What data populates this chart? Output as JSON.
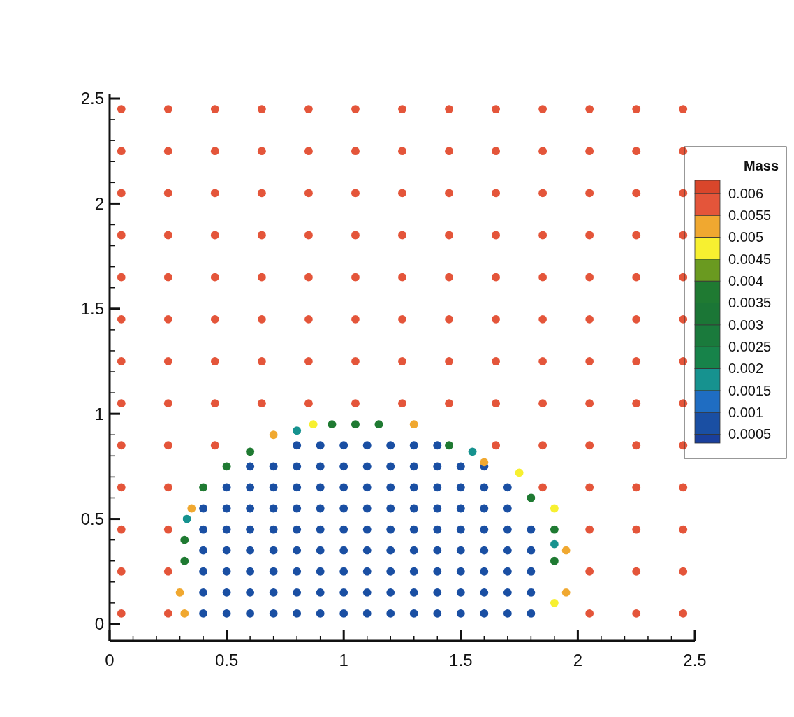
{
  "chart_data": {
    "type": "scatter",
    "clabel": "Mass",
    "marker": "circle",
    "xlim": [
      0,
      2.5
    ],
    "ylim": [
      -0.08,
      2.52
    ],
    "xticks": [
      0,
      {
        "value": 0.1,
        "label": null
      },
      {
        "value": 0.2,
        "label": null
      },
      {
        "value": 0.3,
        "label": null
      },
      {
        "value": 0.4,
        "label": null
      },
      0.5,
      {
        "value": 0.6,
        "label": null
      },
      {
        "value": 0.7,
        "label": null
      },
      {
        "value": 0.8,
        "label": null
      },
      {
        "value": 0.9,
        "label": null
      },
      1,
      {
        "value": 1.1,
        "label": null
      },
      {
        "value": 1.2,
        "label": null
      },
      {
        "value": 1.3,
        "label": null
      },
      {
        "value": 1.4,
        "label": null
      },
      1.5,
      {
        "value": 1.6,
        "label": null
      },
      {
        "value": 1.7,
        "label": null
      },
      {
        "value": 1.8,
        "label": null
      },
      {
        "value": 1.9,
        "label": null
      },
      2,
      {
        "value": 2.1,
        "label": null
      },
      {
        "value": 2.2,
        "label": null
      },
      {
        "value": 2.3,
        "label": null
      },
      {
        "value": 2.4,
        "label": null
      },
      2.5
    ],
    "yticks": [
      0,
      {
        "value": 0.1,
        "label": null
      },
      {
        "value": 0.2,
        "label": null
      },
      {
        "value": 0.3,
        "label": null
      },
      {
        "value": 0.4,
        "label": null
      },
      0.5,
      {
        "value": 0.6,
        "label": null
      },
      {
        "value": 0.7,
        "label": null
      },
      {
        "value": 0.8,
        "label": null
      },
      {
        "value": 0.9,
        "label": null
      },
      1,
      {
        "value": 1.1,
        "label": null
      },
      {
        "value": 1.2,
        "label": null
      },
      {
        "value": 1.3,
        "label": null
      },
      {
        "value": 1.4,
        "label": null
      },
      1.5,
      {
        "value": 1.6,
        "label": null
      },
      {
        "value": 1.7,
        "label": null
      },
      {
        "value": 1.8,
        "label": null
      },
      {
        "value": 1.9,
        "label": null
      },
      2,
      {
        "value": 2.1,
        "label": null
      },
      {
        "value": 2.2,
        "label": null
      },
      {
        "value": 2.3,
        "label": null
      },
      {
        "value": 2.4,
        "label": null
      },
      2.5
    ],
    "clim": [
      0.0003,
      0.0063
    ],
    "cticks": [
      0.0005,
      0.001,
      0.0015,
      0.002,
      0.0025,
      0.003,
      0.0035,
      0.004,
      0.0045,
      0.005,
      0.0055,
      0.006
    ],
    "series": [
      {
        "x": [
          0.05,
          0.25,
          2.05,
          2.25,
          2.45,
          0.05,
          0.25,
          2.05,
          2.25,
          2.45,
          0.05,
          0.25,
          2.05,
          2.25,
          2.45,
          0.05,
          0.25,
          1.85,
          2.05,
          2.25,
          2.45,
          0.05,
          0.25,
          0.45,
          1.65,
          1.85,
          2.05,
          2.25,
          2.45,
          0.05,
          0.25,
          0.45,
          0.65,
          0.85,
          1.05,
          1.25,
          1.45,
          1.65,
          1.85,
          2.05,
          2.25,
          2.45,
          0.05,
          0.25,
          0.45,
          0.65,
          0.85,
          1.05,
          1.25,
          1.45,
          1.65,
          1.85,
          2.05,
          2.25,
          2.45,
          0.05,
          0.25,
          0.45,
          0.65,
          0.85,
          1.05,
          1.25,
          1.45,
          1.65,
          1.85,
          2.05,
          2.25,
          2.45,
          0.05,
          0.25,
          0.45,
          0.65,
          0.85,
          1.05,
          1.25,
          1.45,
          1.65,
          1.85,
          2.05,
          2.25,
          2.45,
          0.05,
          0.25,
          0.45,
          0.65,
          0.85,
          1.05,
          1.25,
          1.45,
          1.65,
          1.85,
          2.05,
          2.25,
          2.45,
          0.05,
          0.25,
          0.45,
          0.65,
          0.85,
          1.05,
          1.25,
          1.45,
          1.65,
          1.85,
          2.05,
          2.25,
          2.45,
          0.05,
          0.25,
          0.45,
          0.65,
          0.85,
          1.05,
          1.25,
          1.45,
          1.65,
          1.85,
          2.05,
          2.25,
          2.45,
          0.05,
          0.25,
          0.45,
          0.65,
          0.85,
          1.05,
          1.25,
          1.45,
          1.65,
          1.85,
          2.05,
          2.25,
          2.45
        ],
        "values": [
          0.05,
          0.05,
          0.05,
          0.05,
          0.05,
          0.25,
          0.25,
          0.25,
          0.25,
          0.25,
          0.45,
          0.45,
          0.45,
          0.45,
          0.45,
          0.65,
          0.65,
          0.65,
          0.65,
          0.65,
          0.65,
          0.85,
          0.85,
          0.85,
          0.85,
          0.85,
          0.85,
          0.85,
          0.85,
          1.05,
          1.05,
          1.05,
          1.05,
          1.05,
          1.05,
          1.05,
          1.05,
          1.05,
          1.05,
          1.05,
          1.05,
          1.05,
          1.25,
          1.25,
          1.25,
          1.25,
          1.25,
          1.25,
          1.25,
          1.25,
          1.25,
          1.25,
          1.25,
          1.25,
          1.25,
          1.45,
          1.45,
          1.45,
          1.45,
          1.45,
          1.45,
          1.45,
          1.45,
          1.45,
          1.45,
          1.45,
          1.45,
          1.45,
          1.65,
          1.65,
          1.65,
          1.65,
          1.65,
          1.65,
          1.65,
          1.65,
          1.65,
          1.65,
          1.65,
          1.65,
          1.65,
          1.85,
          1.85,
          1.85,
          1.85,
          1.85,
          1.85,
          1.85,
          1.85,
          1.85,
          1.85,
          1.85,
          1.85,
          1.85,
          2.05,
          2.05,
          2.05,
          2.05,
          2.05,
          2.05,
          2.05,
          2.05,
          2.05,
          2.05,
          2.05,
          2.05,
          2.05,
          2.25,
          2.25,
          2.25,
          2.25,
          2.25,
          2.25,
          2.25,
          2.25,
          2.25,
          2.25,
          2.25,
          2.25,
          2.25,
          2.45,
          2.45,
          2.45,
          2.45,
          2.45,
          2.45,
          2.45,
          2.45,
          2.45,
          2.45,
          2.45,
          2.45,
          2.45
        ],
        "cvalues": [
          0.0059,
          0.0059,
          0.0059,
          0.0059,
          0.0059,
          0.0059,
          0.0059,
          0.0059,
          0.0059,
          0.0059,
          0.0059,
          0.0059,
          0.0059,
          0.0059,
          0.0059,
          0.0059,
          0.0059,
          0.0059,
          0.0059,
          0.0059,
          0.0059,
          0.0059,
          0.0059,
          0.0059,
          0.0059,
          0.0059,
          0.0059,
          0.0059,
          0.0059,
          0.0059,
          0.0059,
          0.0059,
          0.0059,
          0.0059,
          0.0059,
          0.0059,
          0.0059,
          0.0059,
          0.0059,
          0.0059,
          0.0059,
          0.0059,
          0.0059,
          0.0059,
          0.0059,
          0.0059,
          0.0059,
          0.0059,
          0.0059,
          0.0059,
          0.0059,
          0.0059,
          0.0059,
          0.0059,
          0.0059,
          0.0059,
          0.0059,
          0.0059,
          0.0059,
          0.0059,
          0.0059,
          0.0059,
          0.0059,
          0.0059,
          0.0059,
          0.0059,
          0.0059,
          0.0059,
          0.0059,
          0.0059,
          0.0059,
          0.0059,
          0.0059,
          0.0059,
          0.0059,
          0.0059,
          0.0059,
          0.0059,
          0.0059,
          0.0059,
          0.0059,
          0.0059,
          0.0059,
          0.0059,
          0.0059,
          0.0059,
          0.0059,
          0.0059,
          0.0059,
          0.0059,
          0.0059,
          0.0059,
          0.0059,
          0.0059,
          0.0059,
          0.0059,
          0.0059,
          0.0059,
          0.0059,
          0.0059,
          0.0059,
          0.0059,
          0.0059,
          0.0059,
          0.0059,
          0.0059,
          0.0059,
          0.0059,
          0.0059,
          0.0059,
          0.0059,
          0.0059,
          0.0059,
          0.0059,
          0.0059,
          0.0059,
          0.0059,
          0.0059,
          0.0059,
          0.0059,
          0.0059,
          0.0059,
          0.0059,
          0.0059,
          0.0059,
          0.0059,
          0.0059,
          0.0059,
          0.0059,
          0.0059,
          0.0059,
          0.0059,
          0.0059
        ]
      },
      {
        "x": [
          0.4,
          0.5,
          0.6,
          0.7,
          0.8,
          0.9,
          1.0,
          1.1,
          1.2,
          1.3,
          1.4,
          1.5,
          1.6,
          1.7,
          1.8,
          0.4,
          0.5,
          0.6,
          0.7,
          0.8,
          0.9,
          1.0,
          1.1,
          1.2,
          1.3,
          1.4,
          1.5,
          1.6,
          1.7,
          1.8,
          0.4,
          0.5,
          0.6,
          0.7,
          0.8,
          0.9,
          1.0,
          1.1,
          1.2,
          1.3,
          1.4,
          1.5,
          1.6,
          1.7,
          1.8,
          0.4,
          0.5,
          0.6,
          0.7,
          0.8,
          0.9,
          1.0,
          1.1,
          1.2,
          1.3,
          1.4,
          1.5,
          1.6,
          1.7,
          1.8,
          0.4,
          0.5,
          0.6,
          0.7,
          0.8,
          0.9,
          1.0,
          1.1,
          1.2,
          1.3,
          1.4,
          1.5,
          1.6,
          1.7,
          1.8,
          0.4,
          0.5,
          0.6,
          0.7,
          0.8,
          0.9,
          1.0,
          1.1,
          1.2,
          1.3,
          1.4,
          1.5,
          1.6,
          1.7,
          0.5,
          0.6,
          0.7,
          0.8,
          0.9,
          1.0,
          1.1,
          1.2,
          1.3,
          1.4,
          1.5,
          1.6,
          1.7,
          0.6,
          0.7,
          0.8,
          0.9,
          1.0,
          1.1,
          1.2,
          1.3,
          1.4,
          1.5,
          1.6,
          0.8,
          0.9,
          1.0,
          1.1,
          1.2,
          1.3,
          1.4
        ],
        "values": [
          0.05,
          0.05,
          0.05,
          0.05,
          0.05,
          0.05,
          0.05,
          0.05,
          0.05,
          0.05,
          0.05,
          0.05,
          0.05,
          0.05,
          0.05,
          0.15,
          0.15,
          0.15,
          0.15,
          0.15,
          0.15,
          0.15,
          0.15,
          0.15,
          0.15,
          0.15,
          0.15,
          0.15,
          0.15,
          0.15,
          0.25,
          0.25,
          0.25,
          0.25,
          0.25,
          0.25,
          0.25,
          0.25,
          0.25,
          0.25,
          0.25,
          0.25,
          0.25,
          0.25,
          0.25,
          0.35,
          0.35,
          0.35,
          0.35,
          0.35,
          0.35,
          0.35,
          0.35,
          0.35,
          0.35,
          0.35,
          0.35,
          0.35,
          0.35,
          0.35,
          0.45,
          0.45,
          0.45,
          0.45,
          0.45,
          0.45,
          0.45,
          0.45,
          0.45,
          0.45,
          0.45,
          0.45,
          0.45,
          0.45,
          0.45,
          0.55,
          0.55,
          0.55,
          0.55,
          0.55,
          0.55,
          0.55,
          0.55,
          0.55,
          0.55,
          0.55,
          0.55,
          0.55,
          0.55,
          0.65,
          0.65,
          0.65,
          0.65,
          0.65,
          0.65,
          0.65,
          0.65,
          0.65,
          0.65,
          0.65,
          0.65,
          0.65,
          0.75,
          0.75,
          0.75,
          0.75,
          0.75,
          0.75,
          0.75,
          0.75,
          0.75,
          0.75,
          0.75,
          0.85,
          0.85,
          0.85,
          0.85,
          0.85,
          0.85,
          0.85
        ],
        "cvalues": [
          0.0007,
          0.0007,
          0.0007,
          0.0007,
          0.0007,
          0.0007,
          0.0007,
          0.0007,
          0.0007,
          0.0007,
          0.0007,
          0.0007,
          0.0007,
          0.0007,
          0.0007,
          0.0007,
          0.0007,
          0.0007,
          0.0007,
          0.0007,
          0.0007,
          0.0007,
          0.0007,
          0.0007,
          0.0007,
          0.0007,
          0.0007,
          0.0007,
          0.0007,
          0.0007,
          0.0007,
          0.0007,
          0.0007,
          0.0007,
          0.0007,
          0.0007,
          0.0007,
          0.0007,
          0.0007,
          0.0007,
          0.0007,
          0.0007,
          0.0007,
          0.0007,
          0.0007,
          0.0007,
          0.0007,
          0.0007,
          0.0007,
          0.0007,
          0.0007,
          0.0007,
          0.0007,
          0.0007,
          0.0007,
          0.0007,
          0.0007,
          0.0007,
          0.0007,
          0.0007,
          0.0007,
          0.0007,
          0.0007,
          0.0007,
          0.0007,
          0.0007,
          0.0007,
          0.0007,
          0.0007,
          0.0007,
          0.0007,
          0.0007,
          0.0007,
          0.0007,
          0.0007,
          0.0007,
          0.0007,
          0.0007,
          0.0007,
          0.0007,
          0.0007,
          0.0007,
          0.0007,
          0.0007,
          0.0007,
          0.0007,
          0.0007,
          0.0007,
          0.0007,
          0.0007,
          0.0007,
          0.0007,
          0.0007,
          0.0007,
          0.0007,
          0.0007,
          0.0007,
          0.0007,
          0.0007,
          0.0007,
          0.0007,
          0.0007,
          0.0007,
          0.0007,
          0.0007,
          0.0007,
          0.0007,
          0.0007,
          0.0007,
          0.0007,
          0.0007,
          0.0007,
          0.0007,
          0.0007,
          0.0007,
          0.0007,
          0.0007,
          0.0007,
          0.0007,
          0.0007
        ]
      },
      {
        "x": [
          0.87,
          1.75,
          1.9,
          1.9
        ],
        "values": [
          0.95,
          0.72,
          0.55,
          0.1
        ],
        "cvalues": [
          0.0048,
          0.0048,
          0.0048,
          0.0048
        ]
      },
      {
        "x": [
          0.32,
          0.3,
          0.35,
          0.7,
          1.3,
          1.6,
          1.95,
          1.95
        ],
        "values": [
          0.05,
          0.15,
          0.55,
          0.9,
          0.95,
          0.77,
          0.35,
          0.15
        ],
        "cvalues": [
          0.0052,
          0.0052,
          0.0052,
          0.0052,
          0.0052,
          0.0052,
          0.0052,
          0.0052
        ]
      },
      {
        "x": [
          0.32,
          0.32,
          0.4,
          0.5,
          0.6,
          0.95,
          1.05,
          1.15,
          1.45,
          1.8,
          1.9,
          1.9
        ],
        "values": [
          0.3,
          0.4,
          0.65,
          0.75,
          0.82,
          0.95,
          0.95,
          0.95,
          0.85,
          0.6,
          0.3,
          0.45
        ],
        "cvalues": [
          0.0037,
          0.0037,
          0.0037,
          0.0037,
          0.0037,
          0.0037,
          0.0037,
          0.0037,
          0.0037,
          0.0037,
          0.0037,
          0.0037
        ]
      },
      {
        "x": [
          0.33,
          0.8,
          1.55,
          1.9
        ],
        "values": [
          0.5,
          0.92,
          0.82,
          0.38
        ],
        "cvalues": [
          0.0018,
          0.0018,
          0.0018,
          0.0018
        ]
      }
    ]
  }
}
